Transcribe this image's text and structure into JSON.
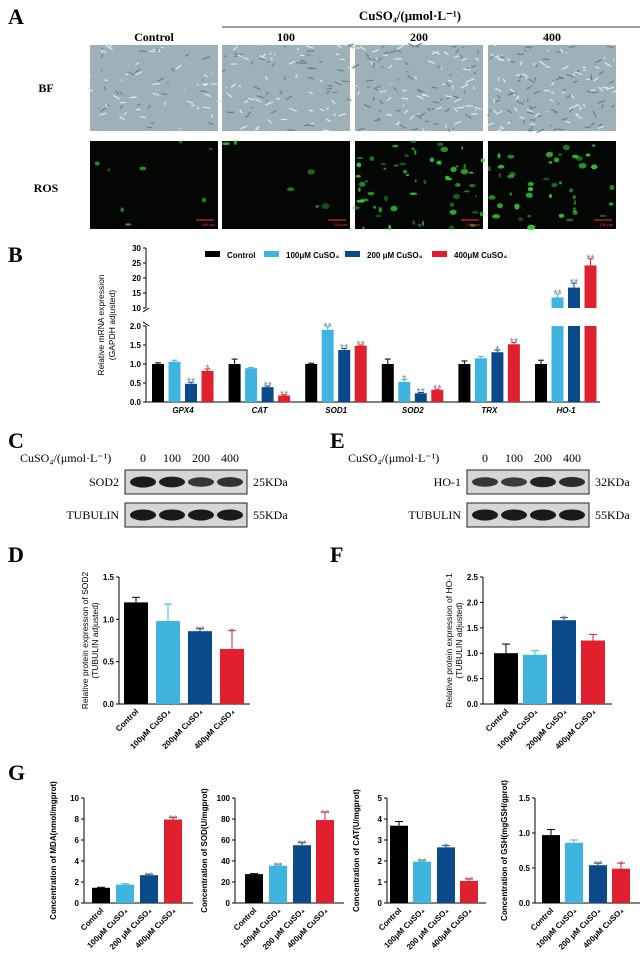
{
  "panel_labels": [
    "A",
    "B",
    "C",
    "D",
    "E",
    "F",
    "G"
  ],
  "colors": {
    "control": "#000000",
    "c100": "#3fb4de",
    "c200": "#0b4a8a",
    "c400": "#e0202f",
    "sig": "#888888",
    "fluor": "#3ddc3a",
    "scalebar": "#ff3030"
  },
  "panel_a": {
    "treatment_header": "CuSO₄/(μmol·L⁻¹)",
    "columns": [
      "Control",
      "100",
      "200",
      "400"
    ],
    "rows": [
      "BF",
      "ROS"
    ],
    "scale_bar": "100 μm"
  },
  "panel_c": {
    "header": "CuSO₄/(μmol·L⁻¹)",
    "doses": [
      "0",
      "100",
      "200",
      "400"
    ],
    "rows": [
      {
        "label": "SOD2",
        "size": "25KDa",
        "bands": [
          1,
          0.95,
          0.7,
          0.75
        ]
      },
      {
        "label": "TUBULIN",
        "size": "55KDa",
        "bands": [
          1,
          1,
          1,
          1
        ]
      }
    ]
  },
  "panel_e": {
    "header": "CuSO₄/(μmol·L⁻¹)",
    "doses": [
      "0",
      "100",
      "200",
      "400"
    ],
    "rows": [
      {
        "label": "HO-1",
        "size": "32KDa",
        "bands": [
          0.7,
          0.65,
          0.9,
          0.8
        ]
      },
      {
        "label": "TUBULIN",
        "size": "55KDa",
        "bands": [
          1,
          1,
          1,
          1
        ]
      }
    ]
  },
  "chart_data": [
    {
      "id": "B",
      "type": "bar",
      "ylabel": "Relative mRNA expression",
      "ylabel2": "(GAPDH adjusted)",
      "categories": [
        "GPX4",
        "CAT",
        "SOD1",
        "SOD2",
        "TRX",
        "HO-1"
      ],
      "yticks_lower": [
        "0.0",
        "0.5",
        "1.0",
        "1.5",
        "2.0"
      ],
      "yticks_upper": [
        "10",
        "15",
        "20",
        "25",
        "30"
      ],
      "axis_break": [
        2,
        10
      ],
      "ylim": [
        0,
        30
      ],
      "legend": "top",
      "series": [
        {
          "name": "Control",
          "values": [
            1.0,
            1.0,
            1.0,
            1.0,
            1.0,
            1.0
          ],
          "err": [
            0.03,
            0.13,
            0.02,
            0.13,
            0.08,
            0.1
          ],
          "sig": [
            "",
            "",
            "",
            "",
            "",
            ""
          ]
        },
        {
          "name": "100μM CuSO₄",
          "values": [
            1.06,
            0.89,
            1.9,
            0.53,
            1.15,
            13.5
          ],
          "err": [
            0.04,
            0.02,
            0.08,
            0.06,
            0.05,
            1.2
          ],
          "sig": [
            "",
            "",
            "**",
            "*",
            "",
            "**"
          ]
        },
        {
          "name": "200 μM CuSO₄",
          "values": [
            0.48,
            0.39,
            1.37,
            0.23,
            1.31,
            16.8
          ],
          "err": [
            0.04,
            0.03,
            0.04,
            0.02,
            0.06,
            1.5
          ],
          "sig": [
            "**",
            "**",
            "**",
            "**",
            "*",
            "**"
          ]
        },
        {
          "name": "400μM CuSO₄",
          "values": [
            0.82,
            0.17,
            1.48,
            0.32,
            1.52,
            24.2
          ],
          "err": [
            0.05,
            0.02,
            0.02,
            0.02,
            0.05,
            2.2
          ],
          "sig": [
            "*",
            "**",
            "**",
            "**",
            "**",
            "**"
          ]
        }
      ]
    },
    {
      "id": "D",
      "type": "bar",
      "ylabel": "Relative protein expression of SOD2",
      "ylabel2": "(TUBULIN adjusted)",
      "categories": [
        "Control",
        "100μM CuSO₄",
        "200μM CuSO₄",
        "400μM CuSO₄"
      ],
      "values": [
        1.2,
        0.98,
        0.86,
        0.65
      ],
      "err": [
        0.06,
        0.2,
        0.03,
        0.22
      ],
      "sig": [
        "",
        "",
        "**",
        "*"
      ],
      "yticks": [
        "0.0",
        "0.5",
        "1.0",
        "1.5"
      ],
      "ylim": [
        0,
        1.5
      ]
    },
    {
      "id": "F",
      "type": "bar",
      "ylabel": "Relative protein expression of HO-1",
      "ylabel2": "(TUBULIN adjusted)",
      "categories": [
        "Control",
        "100μM CuSO₄",
        "200μM CuSO₄",
        "400μM CuSO₄"
      ],
      "values": [
        1.0,
        0.97,
        1.65,
        1.25
      ],
      "err": [
        0.18,
        0.08,
        0.05,
        0.12
      ],
      "sig": [
        "",
        "",
        "*",
        ""
      ],
      "yticks": [
        "0.0",
        "0.5",
        "1.0",
        "1.5",
        "2.0",
        "2.5"
      ],
      "ylim": [
        0,
        2.5
      ]
    },
    {
      "id": "G1",
      "type": "bar",
      "ylabel": "Concentration of MDA(nmol/mgprot)",
      "categories": [
        "Control",
        "100μM CuSO₄",
        "200 μM CuSO₄",
        "400μM CuSO₄"
      ],
      "values": [
        1.45,
        1.75,
        2.65,
        7.95
      ],
      "err": [
        0.05,
        0.08,
        0.05,
        0.2
      ],
      "sig": [
        "",
        "",
        "**",
        "**"
      ],
      "yticks": [
        "0",
        "2",
        "4",
        "6",
        "8",
        "10"
      ],
      "ylim": [
        0,
        10
      ]
    },
    {
      "id": "G2",
      "type": "bar",
      "ylabel": "Concentration of SOD(U/mgprot)",
      "categories": [
        "Control",
        "100μM CuSO₄",
        "200 μM CuSO₄",
        "400μM CuSO₄"
      ],
      "values": [
        27.5,
        35.5,
        55,
        79
      ],
      "err": [
        0.5,
        1,
        2.5,
        7.5
      ],
      "sig": [
        "",
        "**",
        "**",
        "**"
      ],
      "yticks": [
        "0",
        "20",
        "40",
        "60",
        "80",
        "100"
      ],
      "ylim": [
        0,
        100
      ]
    },
    {
      "id": "G3",
      "type": "bar",
      "ylabel": "Concentration of CAT(U/mgprot)",
      "categories": [
        "Control",
        "100μM CuSO₄",
        "200 μM CuSO₄",
        "400μM CuSO₄"
      ],
      "values": [
        3.68,
        1.97,
        2.65,
        1.05
      ],
      "err": [
        0.2,
        0.05,
        0.08,
        0.1
      ],
      "sig": [
        "",
        "**",
        "*",
        "**"
      ],
      "yticks": [
        "0",
        "1",
        "2",
        "3",
        "4",
        "5"
      ],
      "ylim": [
        0,
        5
      ]
    },
    {
      "id": "G4",
      "type": "bar",
      "ylabel": "Concentration of GSH(mgGSH/gprot)",
      "categories": [
        "Control",
        "100μM CuSO₄",
        "200 μM CuSO₄",
        "400μM CuSO₄"
      ],
      "values": [
        0.97,
        0.86,
        0.54,
        0.49
      ],
      "err": [
        0.08,
        0.04,
        0.03,
        0.08
      ],
      "sig": [
        "",
        "",
        "**",
        "*"
      ],
      "yticks": [
        "0.0",
        "0.5",
        "1.0",
        "1.5"
      ],
      "ylim": [
        0,
        1.5
      ]
    }
  ]
}
